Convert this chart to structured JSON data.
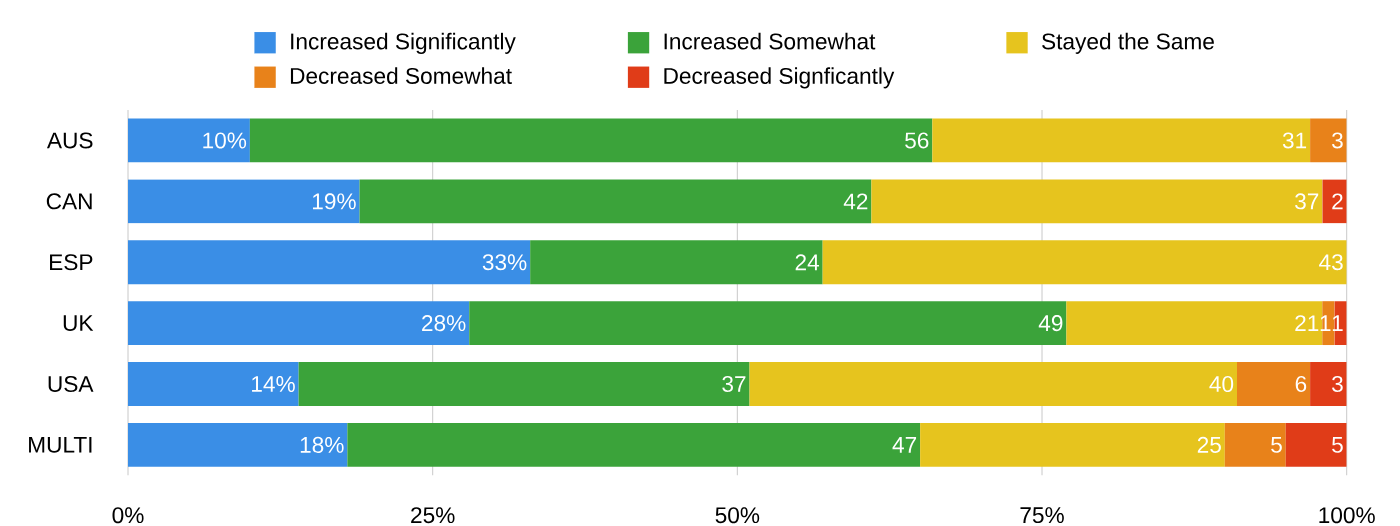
{
  "chart_data": {
    "type": "bar",
    "orientation": "horizontal",
    "stacked": true,
    "categories": [
      "AUS",
      "CAN",
      "ESP",
      "UK",
      "USA",
      "MULTI"
    ],
    "series": [
      {
        "name": "Increased Significantly",
        "color": "#3a8ee6",
        "values": [
          10,
          19,
          33,
          28,
          14,
          18
        ],
        "value_labels": [
          "10%",
          "19%",
          "33%",
          "28%",
          "14%",
          "18%"
        ]
      },
      {
        "name": "Increased Somewhat",
        "color": "#3ba33a",
        "values": [
          56,
          42,
          24,
          49,
          37,
          47
        ],
        "value_labels": [
          "56",
          "42",
          "24",
          "49",
          "37",
          "47"
        ]
      },
      {
        "name": "Stayed the Same",
        "color": "#e6c41e",
        "values": [
          31,
          37,
          43,
          21,
          40,
          25
        ],
        "value_labels": [
          "31",
          "37",
          "43",
          "21",
          "40",
          "25"
        ]
      },
      {
        "name": "Decreased Somewhat",
        "color": "#e8821a",
        "values": [
          3,
          null,
          null,
          1,
          6,
          5
        ],
        "value_labels": [
          "3",
          null,
          null,
          "1",
          "6",
          "5"
        ]
      },
      {
        "name": "Decreased Signficantly",
        "color": "#e03c18",
        "values": [
          null,
          2,
          null,
          1,
          3,
          5
        ],
        "value_labels": [
          null,
          "2",
          null,
          "1",
          "3",
          "5"
        ]
      }
    ],
    "xlim": [
      0,
      100
    ],
    "xticks": [
      {
        "value": 0,
        "label": "0%"
      },
      {
        "value": 25,
        "label": "25%"
      },
      {
        "value": 50,
        "label": "50%"
      },
      {
        "value": 75,
        "label": "75%"
      },
      {
        "value": 100,
        "label": "100%"
      }
    ],
    "grid": "x",
    "legend": "top"
  }
}
